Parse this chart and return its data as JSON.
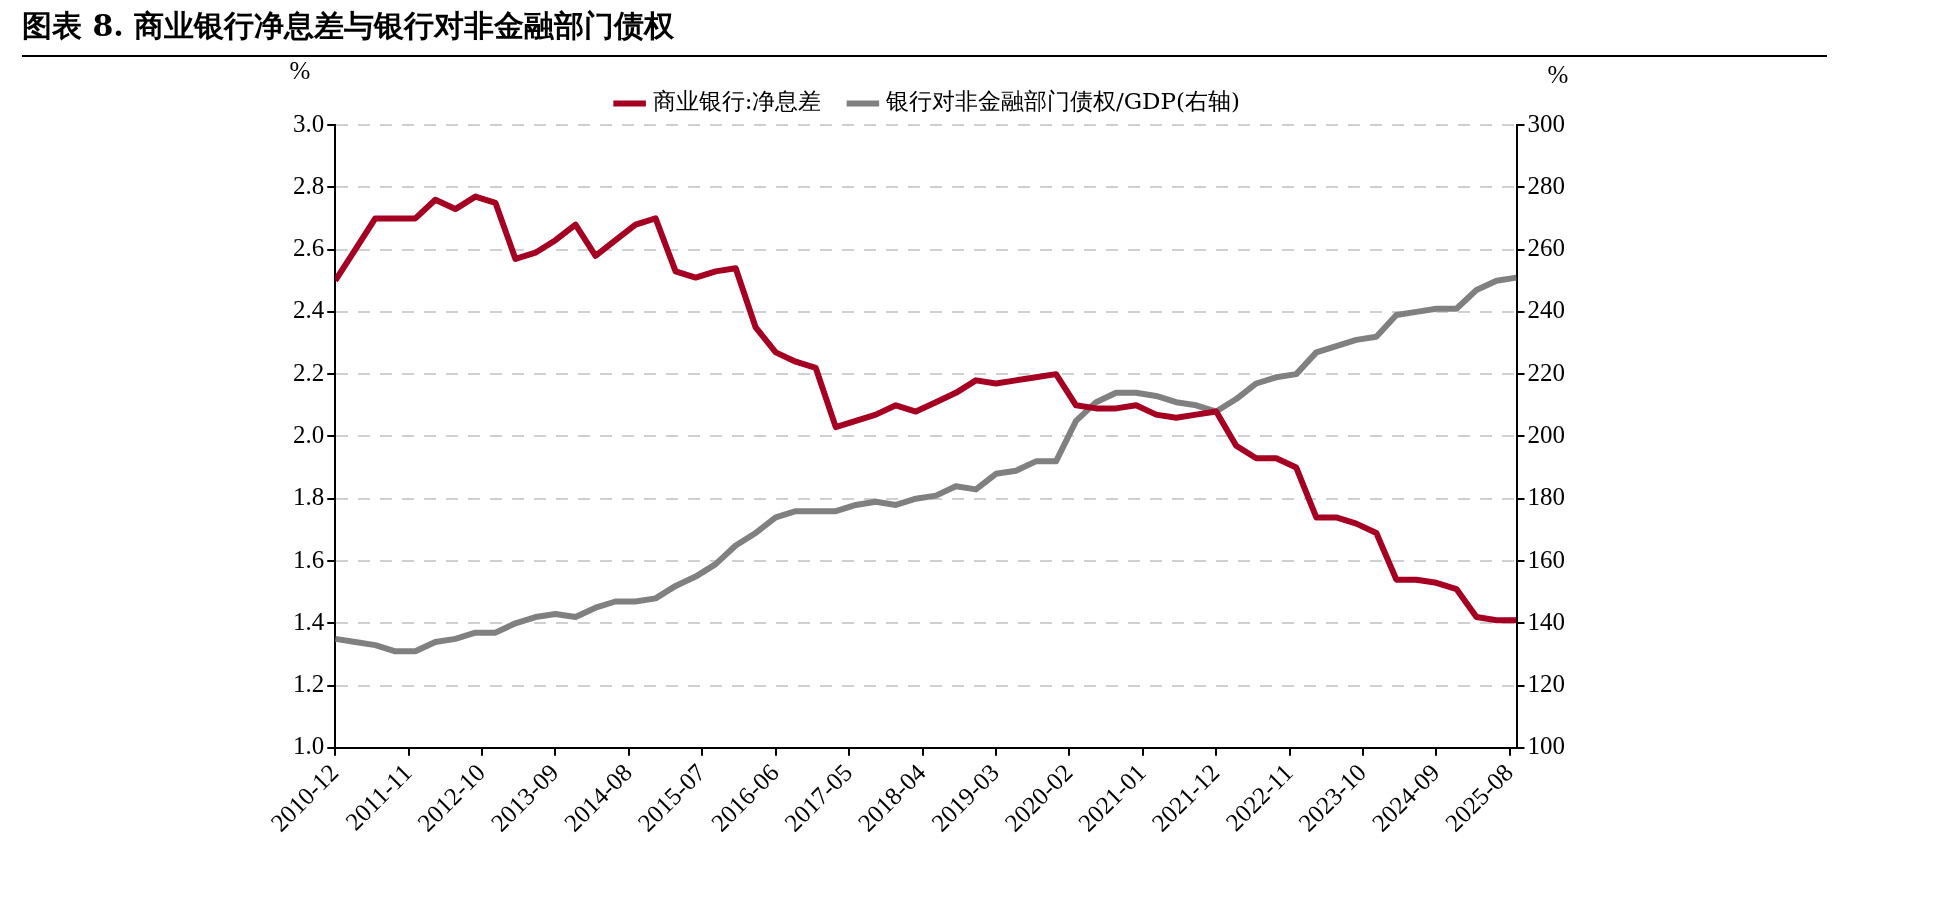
{
  "chart_data": {
    "type": "line",
    "title": "图表 8. 商业银行净息差与银行对非金融部门债权",
    "ylabel": "%",
    "y2label": "%",
    "legend": "top",
    "grid": "y",
    "marker": "none",
    "line_style": "solid",
    "x": [
      "2010-12",
      "2011-03",
      "2011-06",
      "2011-09",
      "2011-12",
      "2012-03",
      "2012-06",
      "2012-09",
      "2012-12",
      "2013-03",
      "2013-06",
      "2013-09",
      "2013-12",
      "2014-03",
      "2014-06",
      "2014-09",
      "2014-12",
      "2015-03",
      "2015-06",
      "2015-09",
      "2015-12",
      "2016-03",
      "2016-06",
      "2016-09",
      "2016-12",
      "2017-03",
      "2017-06",
      "2017-09",
      "2017-12",
      "2018-03",
      "2018-06",
      "2018-09",
      "2018-12",
      "2019-03",
      "2019-06",
      "2019-09",
      "2019-12",
      "2020-03",
      "2020-06",
      "2020-09",
      "2020-12",
      "2021-03",
      "2021-06",
      "2021-09",
      "2021-12",
      "2022-03",
      "2022-06",
      "2022-09",
      "2022-12",
      "2023-03",
      "2023-06",
      "2023-09",
      "2023-12",
      "2024-03",
      "2024-06",
      "2024-09",
      "2024-12",
      "2025-03",
      "2025-06",
      "2025-09"
    ],
    "xlim": [
      "2010-12",
      "2025-09"
    ],
    "xticks": [
      "2010-12",
      "2011-11",
      "2012-10",
      "2013-09",
      "2014-08",
      "2015-07",
      "2016-06",
      "2017-05",
      "2018-04",
      "2019-03",
      "2020-02",
      "2021-01",
      "2021-12",
      "2022-11",
      "2023-10",
      "2024-09",
      "2025-08"
    ],
    "ylim": [
      1.0,
      3.0
    ],
    "yticks": [
      {
        "value": 1,
        "label": "1.0"
      },
      1.2,
      1.4,
      1.6,
      1.8,
      {
        "value": 2,
        "label": "2.0"
      },
      2.2,
      2.4,
      2.6,
      2.8,
      {
        "value": 3,
        "label": "3.0"
      }
    ],
    "y2lim": [
      100,
      300
    ],
    "y2ticks": [
      100,
      120,
      140,
      160,
      180,
      200,
      220,
      240,
      260,
      280,
      300
    ],
    "series": [
      {
        "name": "商业银行:净息差",
        "color": "#a50021",
        "values": [
          2.5,
          2.6,
          2.7,
          2.7,
          2.7,
          2.76,
          2.73,
          2.77,
          2.75,
          2.57,
          2.59,
          2.63,
          2.68,
          2.58,
          2.63,
          2.68,
          2.7,
          2.53,
          2.51,
          2.53,
          2.54,
          2.35,
          2.27,
          2.24,
          2.22,
          2.03,
          2.05,
          2.07,
          2.1,
          2.08,
          2.11,
          2.14,
          2.18,
          2.17,
          2.18,
          2.19,
          2.2,
          2.1,
          2.09,
          2.09,
          2.1,
          2.07,
          2.06,
          2.07,
          2.08,
          1.97,
          1.93,
          1.93,
          1.9,
          1.74,
          1.74,
          1.72,
          1.69,
          1.54,
          1.54,
          1.53,
          1.51,
          1.42,
          1.41,
          1.41
        ]
      },
      {
        "name": "银行对非金融部门债权/GDP(右轴)",
        "color": "#808080",
        "axis": "y2",
        "values": [
          135,
          134,
          133,
          131,
          131,
          134,
          135,
          137,
          137,
          140,
          142,
          143,
          142,
          145,
          147,
          147,
          148,
          152,
          155,
          159,
          165,
          169,
          174,
          176,
          176,
          176,
          178,
          179,
          178,
          180,
          181,
          184,
          183,
          188,
          189,
          192,
          192,
          205,
          211,
          214,
          214,
          213,
          211,
          210,
          208,
          212,
          217,
          219,
          220,
          227,
          229,
          231,
          232,
          239,
          240,
          241,
          241,
          247,
          250,
          251
        ]
      }
    ]
  }
}
